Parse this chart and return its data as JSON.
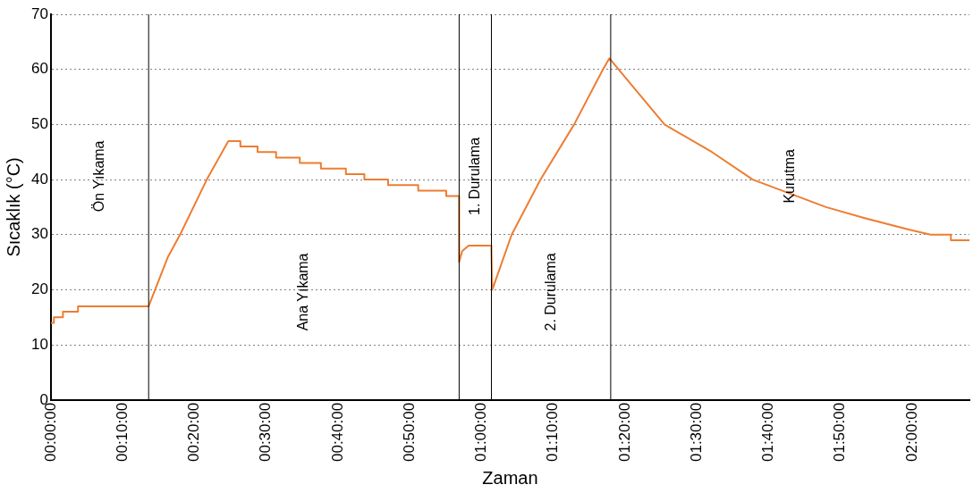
{
  "chart_data": {
    "type": "line",
    "xlabel": "Zaman",
    "ylabel": "Sıcaklık (°C)",
    "x": [
      0,
      0.007,
      0.007,
      0.028,
      0.028,
      0.063,
      0.063,
      0.227,
      0.272,
      0.3,
      0.362,
      0.412,
      0.44,
      0.44,
      0.48,
      0.48,
      0.523,
      0.523,
      0.578,
      0.578,
      0.627,
      0.627,
      0.685,
      0.685,
      0.728,
      0.728,
      0.783,
      0.783,
      0.853,
      0.853,
      0.918,
      0.918,
      0.948,
      0.948,
      0.955,
      0.97,
      1.023,
      1.023,
      1.025,
      1.07,
      1.137,
      1.215,
      1.282,
      1.297,
      1.425,
      1.535,
      1.63,
      1.8,
      1.89,
      1.988,
      2.043,
      2.043,
      2.09,
      2.09,
      2.133
    ],
    "series": [
      {
        "color": "#ed7d31",
        "values": [
          14,
          14,
          15,
          15,
          16,
          16,
          17,
          17,
          26,
          30,
          40,
          47,
          47,
          46,
          46,
          45,
          45,
          44,
          44,
          43,
          43,
          42,
          42,
          41,
          41,
          40,
          40,
          39,
          39,
          38,
          38,
          37,
          37,
          25,
          27,
          28,
          28,
          27,
          20,
          30,
          40,
          50,
          60,
          62,
          50,
          45,
          40,
          35,
          33,
          31,
          30,
          30,
          30,
          29,
          29
        ]
      }
    ],
    "xlim": [
      0,
      2.133
    ],
    "ylim": [
      0,
      70
    ],
    "yticks": [
      0,
      10,
      20,
      30,
      40,
      50,
      60,
      70
    ],
    "xticks": [
      {
        "value": 0,
        "label": "00:00:00"
      },
      {
        "value": 0.1667,
        "label": "00:10:00"
      },
      {
        "value": 0.3333,
        "label": "00:20:00"
      },
      {
        "value": 0.5,
        "label": "00:30:00"
      },
      {
        "value": 0.6667,
        "label": "00:40:00"
      },
      {
        "value": 0.8333,
        "label": "00:50:00"
      },
      {
        "value": 1,
        "label": "01:00:00"
      },
      {
        "value": 1.1667,
        "label": "01:10:00"
      },
      {
        "value": 1.3333,
        "label": "01:20:00"
      },
      {
        "value": 1.5,
        "label": "01:30:00"
      },
      {
        "value": 1.6667,
        "label": "01:40:00"
      },
      {
        "value": 1.8333,
        "label": "01:50:00"
      },
      {
        "value": 2,
        "label": "02:00:00"
      }
    ],
    "grid": "y",
    "legend": false,
    "marker": "none",
    "line_style": "solid",
    "ref_lines": [
      {
        "axis": "x",
        "value": 0.227,
        "color": "#000000"
      },
      {
        "axis": "x",
        "value": 0.948,
        "color": "#000000"
      },
      {
        "axis": "x",
        "value": 1.023,
        "color": "#000000"
      },
      {
        "axis": "x",
        "value": 1.3,
        "color": "#000000"
      }
    ],
    "annotations": [
      "Ön Yıkama",
      "Ana Yıkama",
      "1. Durulama",
      "2. Durulama",
      "Kurutma"
    ]
  }
}
